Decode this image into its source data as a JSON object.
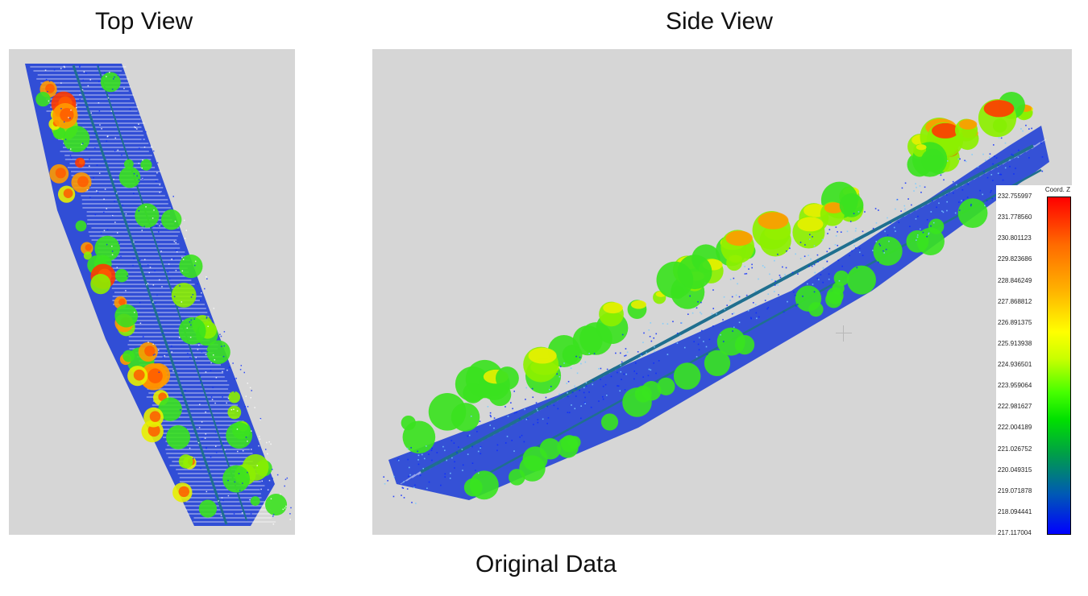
{
  "titles": {
    "top_view": "Top View",
    "side_view": "Side View",
    "caption": "Original Data"
  },
  "colorbar": {
    "title": "Coord. Z",
    "ticks": [
      "232.755997",
      "231.778560",
      "230.801123",
      "229.823686",
      "228.846249",
      "227.868812",
      "226.891375",
      "225.913938",
      "224.936501",
      "223.959064",
      "222.981627",
      "222.004189",
      "221.026752",
      "220.049315",
      "219.071878",
      "218.094441",
      "217.117004"
    ],
    "colors": [
      "#ff0000",
      "#ffb400",
      "#ffff00",
      "#46ff00",
      "#00a046",
      "#005ab4",
      "#0000ff"
    ]
  },
  "colors": {
    "panel_background": "#d6d6d6",
    "ground_blue": "#1f3fd6",
    "road_teal": "#1f6f8f",
    "tree_green": "#33dd22",
    "tree_high": "#ff4a00"
  }
}
